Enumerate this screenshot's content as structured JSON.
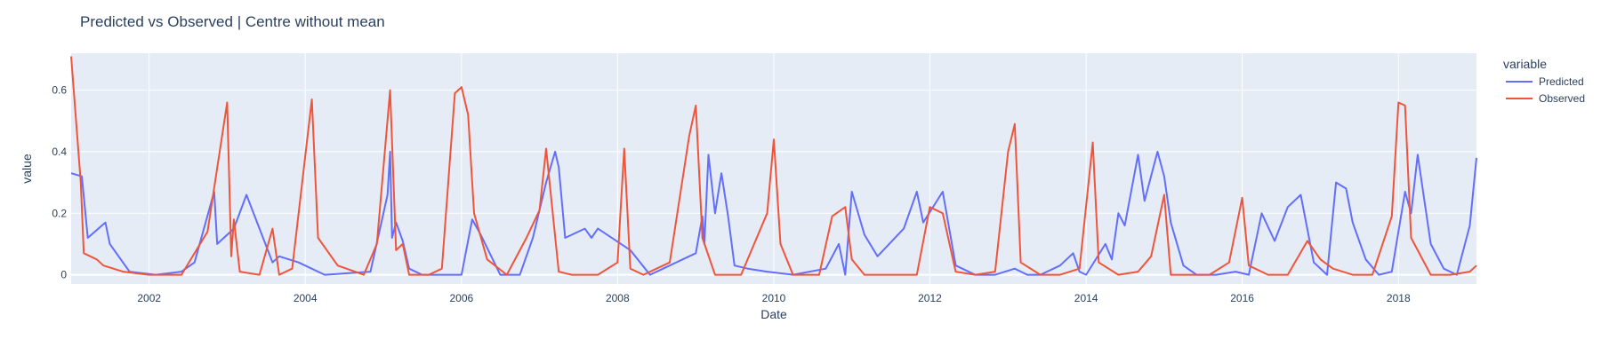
{
  "chart_data": {
    "type": "line",
    "title": "Predicted vs Observed | Centre without mean",
    "xlabel": "Date",
    "ylabel": "value",
    "xlim": [
      "2001-01-01",
      "2019-01-01"
    ],
    "ylim": [
      -0.03,
      0.72
    ],
    "x_ticks": [
      "2002",
      "2004",
      "2006",
      "2008",
      "2010",
      "2012",
      "2014",
      "2016",
      "2018"
    ],
    "y_ticks": [
      "0",
      "0.2",
      "0.4",
      "0.6"
    ],
    "y_tick_values": [
      0,
      0.2,
      0.4,
      0.6
    ],
    "grid": true,
    "legend_title": "variable",
    "legend_position": "top-right",
    "plot_bg": "#e5ecf6",
    "series": [
      {
        "name": "Predicted",
        "color": "#636efa",
        "points": [
          [
            "2001-01-01",
            0.33
          ],
          [
            "2001-02-20",
            0.32
          ],
          [
            "2001-03-20",
            0.12
          ],
          [
            "2001-06-10",
            0.17
          ],
          [
            "2001-07-01",
            0.1
          ],
          [
            "2001-10-01",
            0.01
          ],
          [
            "2002-02-01",
            0.0
          ],
          [
            "2002-06-01",
            0.01
          ],
          [
            "2002-08-01",
            0.04
          ],
          [
            "2002-11-01",
            0.27
          ],
          [
            "2002-11-15",
            0.1
          ],
          [
            "2003-02-01",
            0.15
          ],
          [
            "2003-04-01",
            0.26
          ],
          [
            "2003-08-01",
            0.04
          ],
          [
            "2003-09-01",
            0.06
          ],
          [
            "2003-12-01",
            0.04
          ],
          [
            "2004-04-01",
            0.0
          ],
          [
            "2004-11-01",
            0.01
          ],
          [
            "2005-01-20",
            0.26
          ],
          [
            "2005-02-01",
            0.4
          ],
          [
            "2005-02-10",
            0.12
          ],
          [
            "2005-03-01",
            0.17
          ],
          [
            "2005-04-01",
            0.11
          ],
          [
            "2005-05-01",
            0.02
          ],
          [
            "2005-07-01",
            0.0
          ],
          [
            "2005-10-01",
            0.0
          ],
          [
            "2006-01-01",
            0.0
          ],
          [
            "2006-02-20",
            0.18
          ],
          [
            "2006-04-01",
            0.13
          ],
          [
            "2006-07-01",
            0.0
          ],
          [
            "2006-10-01",
            0.0
          ],
          [
            "2006-12-01",
            0.12
          ],
          [
            "2007-02-01",
            0.3
          ],
          [
            "2007-03-15",
            0.4
          ],
          [
            "2007-04-01",
            0.35
          ],
          [
            "2007-05-01",
            0.12
          ],
          [
            "2007-08-01",
            0.15
          ],
          [
            "2007-09-01",
            0.12
          ],
          [
            "2007-10-01",
            0.15
          ],
          [
            "2008-03-01",
            0.08
          ],
          [
            "2008-06-01",
            0.0
          ],
          [
            "2008-08-01",
            0.02
          ],
          [
            "2009-01-01",
            0.07
          ],
          [
            "2009-02-01",
            0.19
          ],
          [
            "2009-02-10",
            0.1
          ],
          [
            "2009-03-01",
            0.39
          ],
          [
            "2009-04-01",
            0.2
          ],
          [
            "2009-05-01",
            0.33
          ],
          [
            "2009-06-01",
            0.19
          ],
          [
            "2009-07-01",
            0.03
          ],
          [
            "2009-09-01",
            0.02
          ],
          [
            "2009-12-01",
            0.01
          ],
          [
            "2010-04-01",
            0.0
          ],
          [
            "2010-09-01",
            0.02
          ],
          [
            "2010-11-01",
            0.1
          ],
          [
            "2010-12-01",
            0.0
          ],
          [
            "2011-01-01",
            0.27
          ],
          [
            "2011-03-01",
            0.13
          ],
          [
            "2011-05-01",
            0.06
          ],
          [
            "2011-09-01",
            0.15
          ],
          [
            "2011-11-01",
            0.27
          ],
          [
            "2011-12-01",
            0.17
          ],
          [
            "2012-03-01",
            0.27
          ],
          [
            "2012-05-01",
            0.03
          ],
          [
            "2012-08-01",
            0.0
          ],
          [
            "2012-11-01",
            0.0
          ],
          [
            "2013-02-01",
            0.02
          ],
          [
            "2013-04-01",
            0.0
          ],
          [
            "2013-06-01",
            0.0
          ],
          [
            "2013-09-01",
            0.03
          ],
          [
            "2013-11-01",
            0.07
          ],
          [
            "2013-12-01",
            0.01
          ],
          [
            "2014-01-01",
            0.0
          ],
          [
            "2014-04-01",
            0.1
          ],
          [
            "2014-05-01",
            0.05
          ],
          [
            "2014-06-01",
            0.2
          ],
          [
            "2014-07-01",
            0.16
          ],
          [
            "2014-09-01",
            0.39
          ],
          [
            "2014-10-01",
            0.24
          ],
          [
            "2014-12-01",
            0.4
          ],
          [
            "2015-01-01",
            0.32
          ],
          [
            "2015-02-01",
            0.17
          ],
          [
            "2015-04-01",
            0.03
          ],
          [
            "2015-06-01",
            0.0
          ],
          [
            "2015-09-01",
            0.0
          ],
          [
            "2015-12-01",
            0.01
          ],
          [
            "2016-02-01",
            0.0
          ],
          [
            "2016-04-01",
            0.2
          ],
          [
            "2016-06-01",
            0.11
          ],
          [
            "2016-08-01",
            0.22
          ],
          [
            "2016-10-01",
            0.26
          ],
          [
            "2016-12-01",
            0.04
          ],
          [
            "2017-02-01",
            0.0
          ],
          [
            "2017-03-15",
            0.3
          ],
          [
            "2017-05-01",
            0.28
          ],
          [
            "2017-06-01",
            0.17
          ],
          [
            "2017-08-01",
            0.05
          ],
          [
            "2017-10-01",
            0.0
          ],
          [
            "2017-12-01",
            0.01
          ],
          [
            "2018-02-01",
            0.27
          ],
          [
            "2018-03-01",
            0.2
          ],
          [
            "2018-04-01",
            0.39
          ],
          [
            "2018-06-01",
            0.1
          ],
          [
            "2018-08-01",
            0.02
          ],
          [
            "2018-10-01",
            0.0
          ],
          [
            "2018-12-01",
            0.16
          ],
          [
            "2019-01-01",
            0.38
          ]
        ]
      },
      {
        "name": "Observed",
        "color": "#ef553b",
        "points": [
          [
            "2001-01-01",
            0.71
          ],
          [
            "2001-02-15",
            0.3
          ],
          [
            "2001-03-01",
            0.07
          ],
          [
            "2001-05-01",
            0.05
          ],
          [
            "2001-06-01",
            0.03
          ],
          [
            "2001-09-01",
            0.01
          ],
          [
            "2002-01-01",
            0.0
          ],
          [
            "2002-06-01",
            0.0
          ],
          [
            "2002-10-01",
            0.14
          ],
          [
            "2003-01-01",
            0.56
          ],
          [
            "2003-01-20",
            0.06
          ],
          [
            "2003-02-01",
            0.18
          ],
          [
            "2003-03-01",
            0.01
          ],
          [
            "2003-06-01",
            0.0
          ],
          [
            "2003-08-01",
            0.15
          ],
          [
            "2003-09-01",
            0.0
          ],
          [
            "2003-11-01",
            0.02
          ],
          [
            "2004-02-01",
            0.57
          ],
          [
            "2004-03-01",
            0.12
          ],
          [
            "2004-06-01",
            0.03
          ],
          [
            "2004-10-01",
            0.0
          ],
          [
            "2004-12-01",
            0.1
          ],
          [
            "2005-02-01",
            0.6
          ],
          [
            "2005-03-01",
            0.08
          ],
          [
            "2005-04-01",
            0.1
          ],
          [
            "2005-05-01",
            0.0
          ],
          [
            "2005-08-01",
            0.0
          ],
          [
            "2005-10-01",
            0.02
          ],
          [
            "2005-12-01",
            0.59
          ],
          [
            "2006-01-01",
            0.61
          ],
          [
            "2006-02-01",
            0.52
          ],
          [
            "2006-03-01",
            0.2
          ],
          [
            "2006-05-01",
            0.05
          ],
          [
            "2006-08-01",
            0.0
          ],
          [
            "2006-11-01",
            0.12
          ],
          [
            "2007-01-01",
            0.21
          ],
          [
            "2007-02-01",
            0.41
          ],
          [
            "2007-04-01",
            0.01
          ],
          [
            "2007-06-01",
            0.0
          ],
          [
            "2007-10-01",
            0.0
          ],
          [
            "2008-01-01",
            0.04
          ],
          [
            "2008-02-01",
            0.41
          ],
          [
            "2008-03-01",
            0.02
          ],
          [
            "2008-05-01",
            0.0
          ],
          [
            "2008-09-01",
            0.04
          ],
          [
            "2008-12-01",
            0.45
          ],
          [
            "2009-01-01",
            0.55
          ],
          [
            "2009-02-01",
            0.12
          ],
          [
            "2009-04-01",
            0.0
          ],
          [
            "2009-08-01",
            0.0
          ],
          [
            "2009-12-01",
            0.2
          ],
          [
            "2010-01-01",
            0.44
          ],
          [
            "2010-02-01",
            0.1
          ],
          [
            "2010-04-01",
            0.0
          ],
          [
            "2010-08-01",
            0.0
          ],
          [
            "2010-10-01",
            0.19
          ],
          [
            "2010-12-01",
            0.22
          ],
          [
            "2011-01-01",
            0.05
          ],
          [
            "2011-03-01",
            0.0
          ],
          [
            "2011-06-01",
            0.0
          ],
          [
            "2011-09-01",
            0.0
          ],
          [
            "2011-11-01",
            0.0
          ],
          [
            "2012-01-01",
            0.22
          ],
          [
            "2012-03-01",
            0.2
          ],
          [
            "2012-05-01",
            0.01
          ],
          [
            "2012-08-01",
            0.0
          ],
          [
            "2012-11-01",
            0.01
          ],
          [
            "2013-01-01",
            0.4
          ],
          [
            "2013-02-01",
            0.49
          ],
          [
            "2013-03-01",
            0.04
          ],
          [
            "2013-06-01",
            0.0
          ],
          [
            "2013-09-01",
            0.0
          ],
          [
            "2013-12-01",
            0.02
          ],
          [
            "2014-02-01",
            0.43
          ],
          [
            "2014-03-01",
            0.04
          ],
          [
            "2014-06-01",
            0.0
          ],
          [
            "2014-09-01",
            0.01
          ],
          [
            "2014-11-01",
            0.06
          ],
          [
            "2015-01-01",
            0.26
          ],
          [
            "2015-02-01",
            0.0
          ],
          [
            "2015-05-01",
            0.0
          ],
          [
            "2015-08-01",
            0.0
          ],
          [
            "2015-11-01",
            0.04
          ],
          [
            "2016-01-01",
            0.25
          ],
          [
            "2016-02-01",
            0.03
          ],
          [
            "2016-05-01",
            0.0
          ],
          [
            "2016-08-01",
            0.0
          ],
          [
            "2016-11-01",
            0.11
          ],
          [
            "2017-01-01",
            0.05
          ],
          [
            "2017-03-01",
            0.02
          ],
          [
            "2017-06-01",
            0.0
          ],
          [
            "2017-09-01",
            0.0
          ],
          [
            "2017-12-01",
            0.19
          ],
          [
            "2018-01-01",
            0.56
          ],
          [
            "2018-02-01",
            0.55
          ],
          [
            "2018-03-01",
            0.12
          ],
          [
            "2018-06-01",
            0.0
          ],
          [
            "2018-09-01",
            0.0
          ],
          [
            "2018-12-01",
            0.01
          ],
          [
            "2019-01-01",
            0.03
          ]
        ]
      }
    ]
  }
}
